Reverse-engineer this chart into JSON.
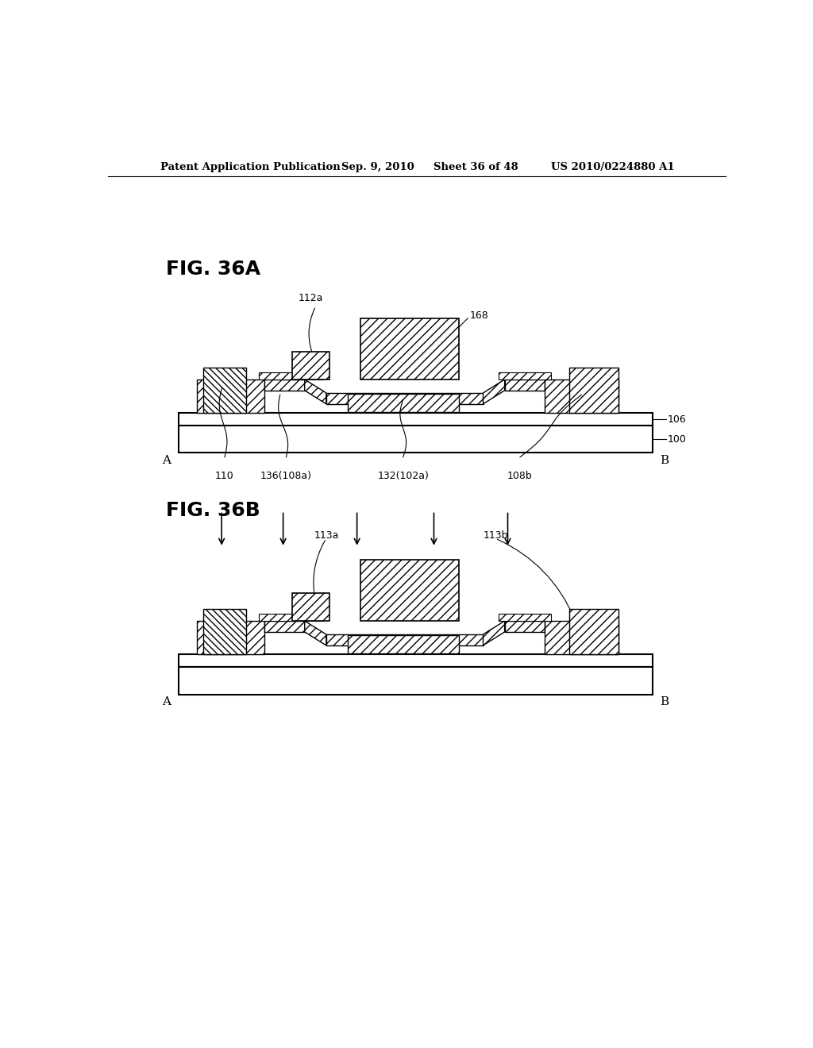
{
  "bg_color": "#ffffff",
  "header_text": "Patent Application Publication",
  "header_date": "Sep. 9, 2010",
  "header_sheet": "Sheet 36 of 48",
  "header_patent": "US 2010/0224880 A1",
  "fig_a_label": "FIG. 36A",
  "fig_b_label": "FIG. 36B",
  "label_106": "106",
  "label_100": "100",
  "label_A_a": "A",
  "label_B_a": "B",
  "label_110": "110",
  "label_136": "136(108a)",
  "label_132": "132(102a)",
  "label_108b": "108b",
  "label_112a": "112a",
  "label_168": "168",
  "label_113a": "113a",
  "label_113b": "113b",
  "label_A_b": "A",
  "label_B_b": "B"
}
